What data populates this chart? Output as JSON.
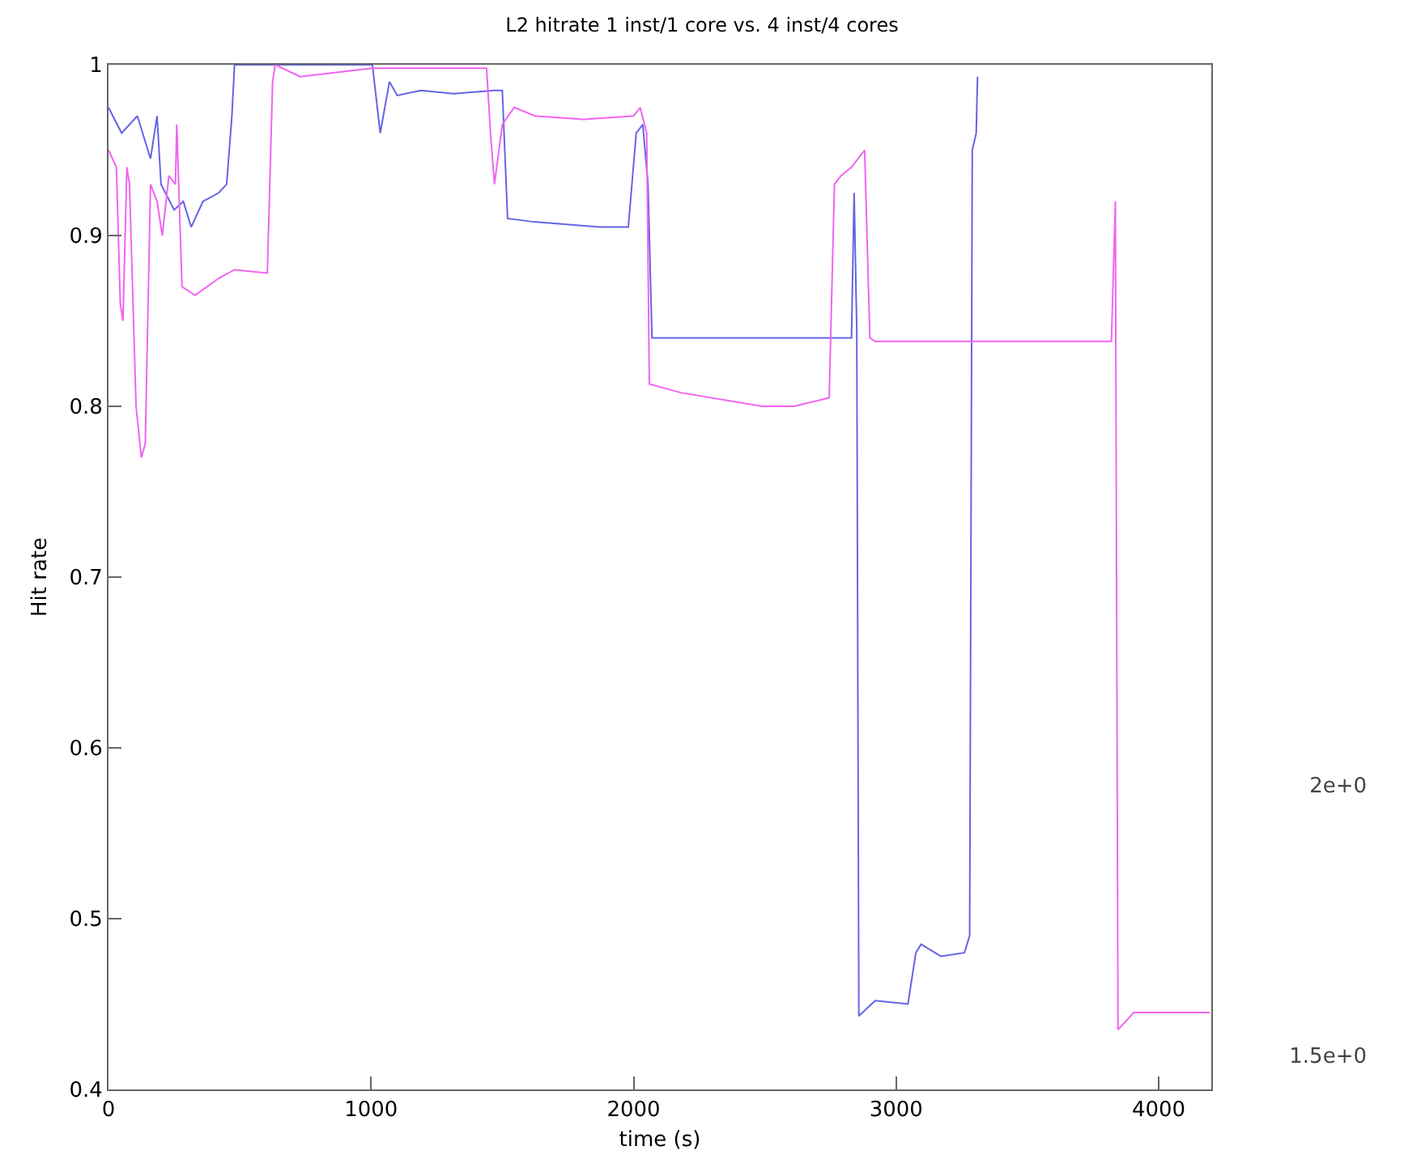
{
  "chart_data": {
    "type": "line",
    "title": "L2 hitrate 1 inst/1 core vs. 4 inst/4 cores",
    "xlabel": "time (s)",
    "ylabel": "Hit rate",
    "xlim": [
      0,
      4200
    ],
    "xticks": [
      0,
      1000,
      2000,
      3000,
      4000
    ],
    "ylim": [
      0.4,
      1
    ],
    "yticks": [
      0.4,
      0.5,
      0.6,
      0.7,
      0.8,
      0.9,
      1
    ],
    "y2lim": [
      1.437,
      3.332
    ],
    "y2ticks": [
      {
        "value": 1.5,
        "label": "1.5e+0"
      },
      {
        "value": 2,
        "label": "2e+0"
      }
    ],
    "grid": false,
    "marker": "none",
    "line_style": "solid",
    "series": [
      {
        "color": "#6464e6",
        "x": [
          0,
          50,
          110,
          160,
          185,
          200,
          250,
          285,
          315,
          360,
          420,
          450,
          470,
          480,
          1005,
          1035,
          1070,
          1100,
          1190,
          1315,
          1470,
          1500,
          1520,
          1620,
          1870,
          1980,
          2010,
          2035,
          2055,
          2070,
          2830,
          2840,
          2850,
          2858,
          2920,
          3045,
          3075,
          3095,
          3170,
          3260,
          3280,
          3290,
          3305,
          3310
        ],
        "values": [
          0.975,
          0.96,
          0.97,
          0.945,
          0.97,
          0.93,
          0.915,
          0.92,
          0.905,
          0.92,
          0.925,
          0.93,
          0.97,
          1.0,
          1.0,
          0.96,
          0.99,
          0.982,
          0.985,
          0.983,
          0.985,
          0.985,
          0.91,
          0.908,
          0.905,
          0.905,
          0.96,
          0.965,
          0.93,
          0.84,
          0.84,
          0.925,
          0.845,
          0.443,
          0.452,
          0.45,
          0.48,
          0.485,
          0.478,
          0.48,
          0.49,
          0.95,
          0.96,
          0.993
        ]
      },
      {
        "color": "#f064f0",
        "x": [
          0,
          30,
          45,
          55,
          70,
          80,
          105,
          125,
          140,
          160,
          185,
          205,
          230,
          255,
          260,
          280,
          330,
          420,
          480,
          605,
          625,
          635,
          730,
          1005,
          1440,
          1455,
          1470,
          1500,
          1545,
          1625,
          1810,
          2000,
          2025,
          2050,
          2060,
          2180,
          2490,
          2610,
          2745,
          2765,
          2790,
          2830,
          2880,
          2900,
          2920,
          3820,
          3835,
          3845,
          3905,
          4195
        ],
        "values": [
          0.95,
          0.94,
          0.86,
          0.85,
          0.94,
          0.93,
          0.8,
          0.77,
          0.778,
          0.93,
          0.92,
          0.9,
          0.935,
          0.93,
          0.965,
          0.87,
          0.865,
          0.875,
          0.88,
          0.878,
          0.99,
          1.0,
          0.993,
          0.998,
          0.998,
          0.96,
          0.93,
          0.965,
          0.975,
          0.97,
          0.968,
          0.97,
          0.975,
          0.96,
          0.813,
          0.808,
          0.8,
          0.8,
          0.805,
          0.93,
          0.935,
          0.94,
          0.95,
          0.84,
          0.838,
          0.838,
          0.92,
          0.435,
          0.445,
          0.445
        ]
      }
    ]
  }
}
